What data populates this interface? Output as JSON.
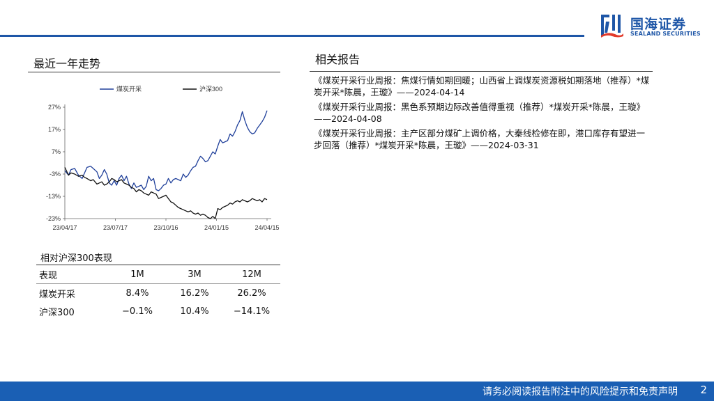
{
  "brand": {
    "name_cn": "国海证券",
    "name_en": "SEALAND SECURITIES",
    "color": "#1e56a7"
  },
  "left": {
    "section_title": "最近一年走势"
  },
  "chart_data": {
    "type": "line",
    "x_ticks": [
      "23/04/17",
      "23/07/17",
      "23/10/16",
      "24/01/15",
      "24/04/15"
    ],
    "y_ticks": [
      "27%",
      "17%",
      "7%",
      "-3%",
      "-13%",
      "-23%"
    ],
    "ylim": [
      -23,
      27
    ],
    "grid": false,
    "legend_position": "top",
    "series": [
      {
        "name": "煤炭开采",
        "color": "#1f3f9a",
        "points": [
          [
            0,
            -1.5
          ],
          [
            3,
            -3.5
          ],
          [
            5,
            -1
          ],
          [
            8,
            -0.5
          ],
          [
            11,
            -3.5
          ],
          [
            14,
            -5
          ],
          [
            16,
            -2.5
          ],
          [
            18,
            0
          ],
          [
            21,
            0.5
          ],
          [
            23,
            -0.5
          ],
          [
            26,
            -2
          ],
          [
            28,
            -5
          ],
          [
            30,
            -3.5
          ],
          [
            32,
            -1
          ],
          [
            34,
            -3
          ],
          [
            36,
            -7
          ],
          [
            38,
            -8
          ],
          [
            40,
            -6
          ],
          [
            42,
            -8
          ],
          [
            44,
            -5
          ],
          [
            46,
            -3.5
          ],
          [
            48,
            -6
          ],
          [
            50,
            -4
          ],
          [
            52,
            -7.5
          ],
          [
            54,
            -9.5
          ],
          [
            56,
            -7
          ],
          [
            58,
            -9
          ],
          [
            60,
            -8.5
          ],
          [
            62,
            -8
          ],
          [
            64,
            -10
          ],
          [
            66,
            -8.5
          ],
          [
            68,
            -4
          ],
          [
            70,
            -6
          ],
          [
            72,
            -5
          ],
          [
            74,
            -10
          ],
          [
            76,
            -10.5
          ],
          [
            78,
            -9.5
          ],
          [
            80,
            -8
          ],
          [
            82,
            -7.5
          ],
          [
            84,
            -5
          ],
          [
            86,
            -7
          ],
          [
            88,
            -5.5
          ],
          [
            90,
            -5
          ],
          [
            92,
            -5.5
          ],
          [
            94,
            -6
          ],
          [
            96,
            -3
          ],
          [
            98,
            -4.5
          ],
          [
            100,
            -3.5
          ],
          [
            102,
            -1.5
          ],
          [
            104,
            0
          ],
          [
            106,
            0.5
          ],
          [
            108,
            3
          ],
          [
            110,
            5
          ],
          [
            112,
            4
          ],
          [
            114,
            2.5
          ],
          [
            116,
            3
          ],
          [
            118,
            5
          ],
          [
            120,
            7
          ],
          [
            122,
            6
          ],
          [
            124,
            9.5
          ],
          [
            126,
            12.5
          ],
          [
            128,
            11
          ],
          [
            130,
            11.5
          ],
          [
            132,
            12
          ],
          [
            134,
            15
          ],
          [
            136,
            14
          ],
          [
            138,
            16
          ],
          [
            140,
            19
          ],
          [
            142,
            21
          ],
          [
            144,
            25
          ],
          [
            146,
            21
          ],
          [
            148,
            18
          ],
          [
            150,
            16
          ],
          [
            152,
            15
          ],
          [
            154,
            15.5
          ],
          [
            156,
            17.5
          ],
          [
            158,
            19
          ],
          [
            160,
            20.5
          ],
          [
            162,
            22.5
          ],
          [
            164,
            25.5
          ]
        ]
      },
      {
        "name": "沪深300",
        "color": "#111111",
        "points": [
          [
            0,
            0
          ],
          [
            3,
            -3.5
          ],
          [
            5,
            -2.5
          ],
          [
            8,
            -3
          ],
          [
            11,
            -4
          ],
          [
            14,
            -3.5
          ],
          [
            16,
            -4.5
          ],
          [
            18,
            -5
          ],
          [
            21,
            -6
          ],
          [
            23,
            -5.5
          ],
          [
            26,
            -7.5
          ],
          [
            28,
            -7
          ],
          [
            30,
            -6.5
          ],
          [
            32,
            -8
          ],
          [
            34,
            -7.5
          ],
          [
            36,
            -6.5
          ],
          [
            38,
            -5
          ],
          [
            40,
            -5.5
          ],
          [
            42,
            -6.5
          ],
          [
            44,
            -6
          ],
          [
            46,
            -5.5
          ],
          [
            48,
            -7
          ],
          [
            50,
            -7.5
          ],
          [
            52,
            -8
          ],
          [
            54,
            -9
          ],
          [
            56,
            -9.5
          ],
          [
            58,
            -11
          ],
          [
            60,
            -10
          ],
          [
            62,
            -10.5
          ],
          [
            64,
            -11.5
          ],
          [
            66,
            -12
          ],
          [
            68,
            -12.5
          ],
          [
            70,
            -11
          ],
          [
            72,
            -11.5
          ],
          [
            74,
            -12
          ],
          [
            76,
            -14
          ],
          [
            78,
            -13.5
          ],
          [
            80,
            -13
          ],
          [
            82,
            -12.5
          ],
          [
            84,
            -14
          ],
          [
            86,
            -15.5
          ],
          [
            88,
            -16
          ],
          [
            90,
            -17
          ],
          [
            92,
            -18
          ],
          [
            94,
            -18.5
          ],
          [
            96,
            -19
          ],
          [
            98,
            -19.5
          ],
          [
            100,
            -20
          ],
          [
            102,
            -19.5
          ],
          [
            104,
            -20.5
          ],
          [
            106,
            -21
          ],
          [
            108,
            -20.5
          ],
          [
            110,
            -21.5
          ],
          [
            112,
            -21
          ],
          [
            114,
            -21.5
          ],
          [
            116,
            -22.5
          ],
          [
            118,
            -23
          ],
          [
            120,
            -22
          ],
          [
            122,
            -23
          ],
          [
            124,
            -18.5
          ],
          [
            126,
            -19
          ],
          [
            128,
            -18
          ],
          [
            130,
            -17.5
          ],
          [
            132,
            -17
          ],
          [
            134,
            -16
          ],
          [
            136,
            -16.5
          ],
          [
            138,
            -15.5
          ],
          [
            140,
            -15
          ],
          [
            142,
            -15.5
          ],
          [
            144,
            -14.5
          ],
          [
            146,
            -15
          ],
          [
            148,
            -15.5
          ],
          [
            150,
            -15
          ],
          [
            152,
            -14
          ],
          [
            154,
            -14.5
          ],
          [
            156,
            -15
          ],
          [
            158,
            -14.5
          ],
          [
            160,
            -15.5
          ],
          [
            162,
            -14
          ],
          [
            164,
            -14.5
          ]
        ]
      }
    ]
  },
  "relative": {
    "title": "相对沪深300表现",
    "headers": [
      "表现",
      "1M",
      "3M",
      "12M"
    ],
    "rows": [
      [
        "煤炭开采",
        "8.4%",
        "16.2%",
        "26.2%"
      ],
      [
        "沪深300",
        "−0.1%",
        "10.4%",
        "−14.1%"
      ]
    ]
  },
  "right": {
    "section_title": "相关报告",
    "reports": [
      "《煤炭开采行业周报：焦煤行情如期回暖；山西省上调煤炭资源税如期落地（推荐）*煤炭开采*陈晨，王璇》——2024-04-14",
      "《煤炭开采行业周报：黑色系预期边际改善值得重视（推荐）*煤炭开采*陈晨，王璇》——2024-04-08",
      "《煤炭开采行业周报：主产区部分煤矿上调价格，大秦线检修在即，港口库存有望进一步回落（推荐）*煤炭开采*陈晨，王璇》——2024-03-31"
    ]
  },
  "footer": {
    "disclaimer": "请务必阅读报告附注中的风险提示和免责声明",
    "page": "2"
  }
}
